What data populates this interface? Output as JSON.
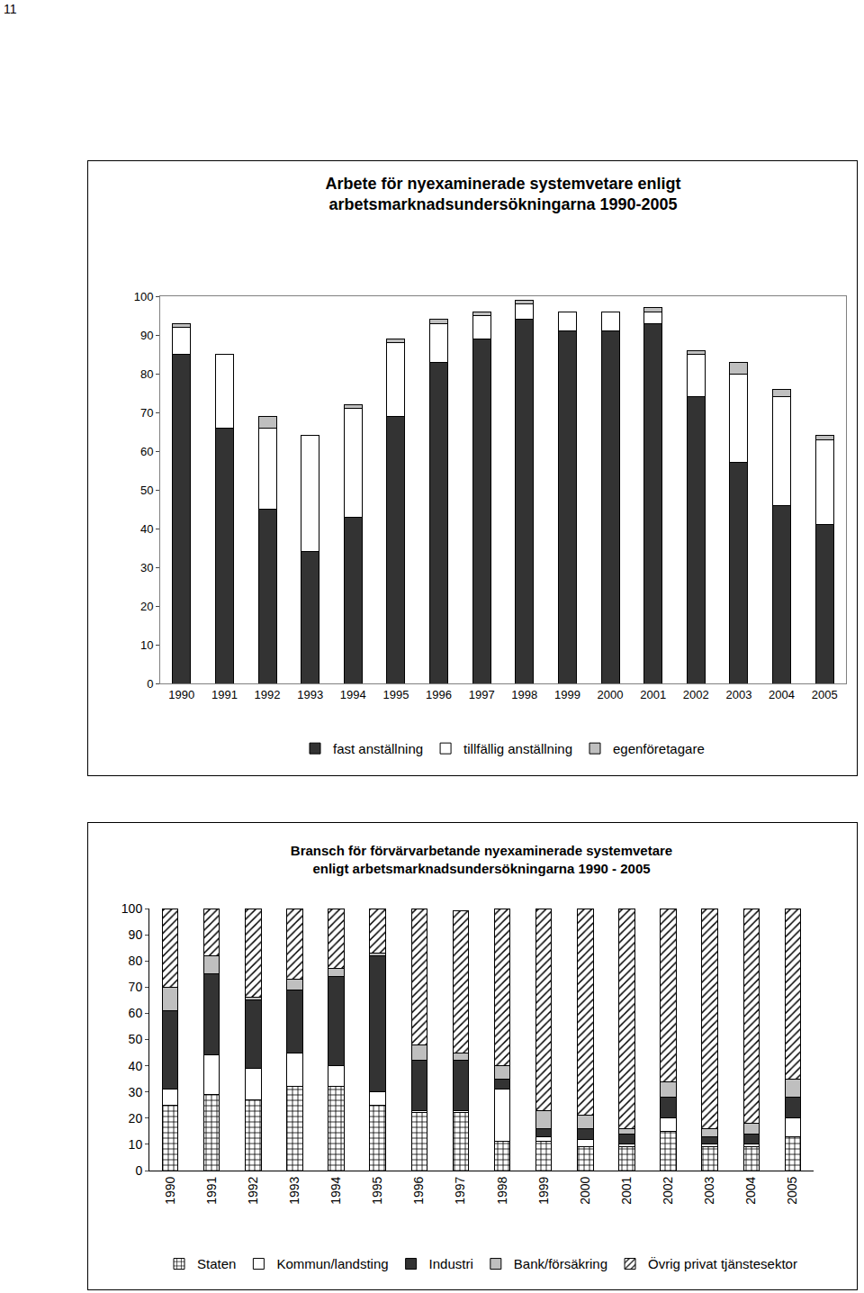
{
  "page_number": "11",
  "chart_data": [
    {
      "type": "bar",
      "stacked": true,
      "title": "Arbete för nyexaminerade systemvetare enligt\narbetsmarknadsundersökningarna 1990-2005",
      "categories": [
        "1990",
        "1991",
        "1992",
        "1993",
        "1994",
        "1995",
        "1996",
        "1997",
        "1998",
        "1999",
        "2000",
        "2001",
        "2002",
        "2003",
        "2004",
        "2005"
      ],
      "series": [
        {
          "name": "fast anställning",
          "color": "#333333",
          "values": [
            85,
            66,
            45,
            34,
            43,
            69,
            83,
            89,
            94,
            91,
            91,
            93,
            74,
            57,
            46,
            41
          ]
        },
        {
          "name": "tillfällig anställning",
          "color": "#ffffff",
          "values": [
            7,
            19,
            21,
            30,
            28,
            19,
            10,
            6,
            4,
            5,
            5,
            3,
            11,
            23,
            28,
            22
          ]
        },
        {
          "name": "egenföretagare",
          "color": "#bfbfbf",
          "values": [
            1,
            0,
            3,
            0,
            1,
            1,
            1,
            1,
            1,
            0,
            0,
            1,
            1,
            3,
            2,
            1
          ]
        }
      ],
      "ylim": [
        0,
        100
      ],
      "yticks": [
        0,
        10,
        20,
        30,
        40,
        50,
        60,
        70,
        80,
        90,
        100
      ],
      "grid": false,
      "legend": "bottom"
    },
    {
      "type": "bar",
      "stacked": true,
      "title": "Bransch för förvärvarbetande nyexaminerade systemvetare\nenligt arbetsmarknadsundersökningarna 1990 - 2005",
      "categories": [
        "1990",
        "1991",
        "1992",
        "1993",
        "1994",
        "1995",
        "1996",
        "1997",
        "1998",
        "1999",
        "2000",
        "2001",
        "2002",
        "2003",
        "2004",
        "2005"
      ],
      "series": [
        {
          "name": "Staten",
          "color": "#ffffff",
          "marker": "grid",
          "values": [
            25,
            29,
            27,
            32,
            32,
            25,
            22,
            22,
            11,
            11,
            9,
            9,
            15,
            9,
            9,
            13
          ]
        },
        {
          "name": "Kommun/landsting",
          "color": "#ffffff",
          "values": [
            6,
            15,
            12,
            13,
            8,
            5,
            1,
            1,
            20,
            2,
            3,
            1,
            5,
            1,
            1,
            7
          ]
        },
        {
          "name": "Industri",
          "color": "#333333",
          "values": [
            30,
            31,
            26,
            24,
            34,
            52,
            19,
            19,
            4,
            3,
            4,
            4,
            8,
            3,
            4,
            8
          ]
        },
        {
          "name": "Bank/försäkring",
          "color": "#bfbfbf",
          "values": [
            9,
            7,
            1,
            4,
            3,
            1,
            6,
            3,
            5,
            7,
            5,
            2,
            6,
            3,
            4,
            7
          ]
        },
        {
          "name": "Övrig privat tjänstesektor",
          "color": "#ffffff",
          "marker": "diagonal",
          "values": [
            30,
            18,
            34,
            27,
            23,
            17,
            52,
            54,
            60,
            77,
            79,
            84,
            66,
            84,
            82,
            65
          ]
        }
      ],
      "ylim": [
        0,
        100
      ],
      "yticks": [
        0,
        10,
        20,
        30,
        40,
        50,
        60,
        70,
        80,
        90,
        100
      ],
      "grid": false,
      "legend": "bottom"
    }
  ]
}
